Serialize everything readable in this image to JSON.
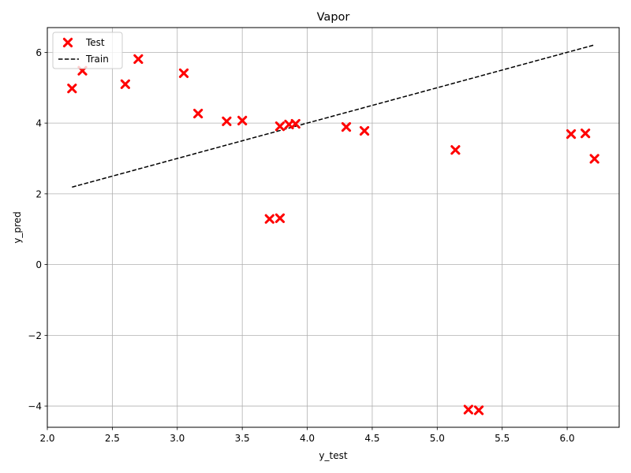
{
  "chart_data": {
    "type": "scatter",
    "title": "Vapor",
    "xlabel": "y_test",
    "ylabel": "y_pred",
    "xlim": [
      2.0,
      6.4
    ],
    "ylim": [
      -4.6,
      6.7
    ],
    "xticks": [
      "2.0",
      "2.5",
      "3.0",
      "3.5",
      "4.0",
      "4.5",
      "5.0",
      "5.5",
      "6.0"
    ],
    "yticks": [
      "−4",
      "−2",
      "0",
      "2",
      "4",
      "6"
    ],
    "grid": true,
    "legend_position": "top-left",
    "series": [
      {
        "name": "Test",
        "kind": "scatter",
        "marker": "X",
        "color": "#ff0000",
        "points": [
          [
            2.19,
            4.98
          ],
          [
            2.27,
            5.48
          ],
          [
            2.6,
            5.1
          ],
          [
            2.7,
            5.81
          ],
          [
            3.05,
            5.41
          ],
          [
            3.16,
            4.27
          ],
          [
            3.38,
            4.05
          ],
          [
            3.5,
            4.07
          ],
          [
            3.71,
            1.29
          ],
          [
            3.79,
            1.31
          ],
          [
            3.79,
            3.91
          ],
          [
            3.86,
            3.96
          ],
          [
            3.91,
            3.98
          ],
          [
            4.3,
            3.89
          ],
          [
            4.44,
            3.78
          ],
          [
            5.14,
            3.24
          ],
          [
            5.24,
            -4.1
          ],
          [
            5.32,
            -4.12
          ],
          [
            6.03,
            3.69
          ],
          [
            6.14,
            3.71
          ],
          [
            6.21,
            2.99
          ]
        ]
      },
      {
        "name": "Train",
        "kind": "line",
        "style": "dashed",
        "color": "#000000",
        "points": [
          [
            2.19,
            2.19
          ],
          [
            6.21,
            6.21
          ]
        ]
      }
    ]
  }
}
